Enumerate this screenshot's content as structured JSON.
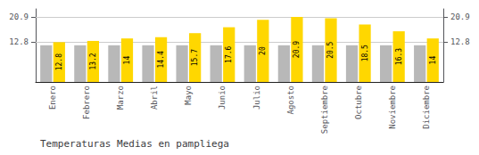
{
  "chart_data": {
    "type": "bar",
    "title": "Temperaturas Medias en pampliega",
    "categories": [
      "Enero",
      "Febrero",
      "Marzo",
      "Abril",
      "Mayo",
      "Junio",
      "Julio",
      "Agosto",
      "Septiembre",
      "Octubre",
      "Noviembre",
      "Diciembre"
    ],
    "series": [
      {
        "color": "#B8B8B8",
        "values": [
          11.8,
          11.8,
          11.8,
          11.8,
          11.8,
          11.8,
          11.8,
          11.8,
          11.8,
          11.8,
          11.8,
          11.8
        ]
      },
      {
        "color": "#FFD700",
        "values": [
          12.8,
          13.2,
          14.0,
          14.4,
          15.7,
          17.6,
          20.0,
          20.9,
          20.5,
          18.5,
          16.3,
          14.0
        ],
        "data_labels": true
      }
    ],
    "ylim": [
      0,
      23.5
    ],
    "yticks": [
      12.8,
      20.9
    ],
    "y2lim": [
      0,
      23.5
    ],
    "y2ticks": [
      12.8,
      20.9
    ],
    "grid": true
  }
}
